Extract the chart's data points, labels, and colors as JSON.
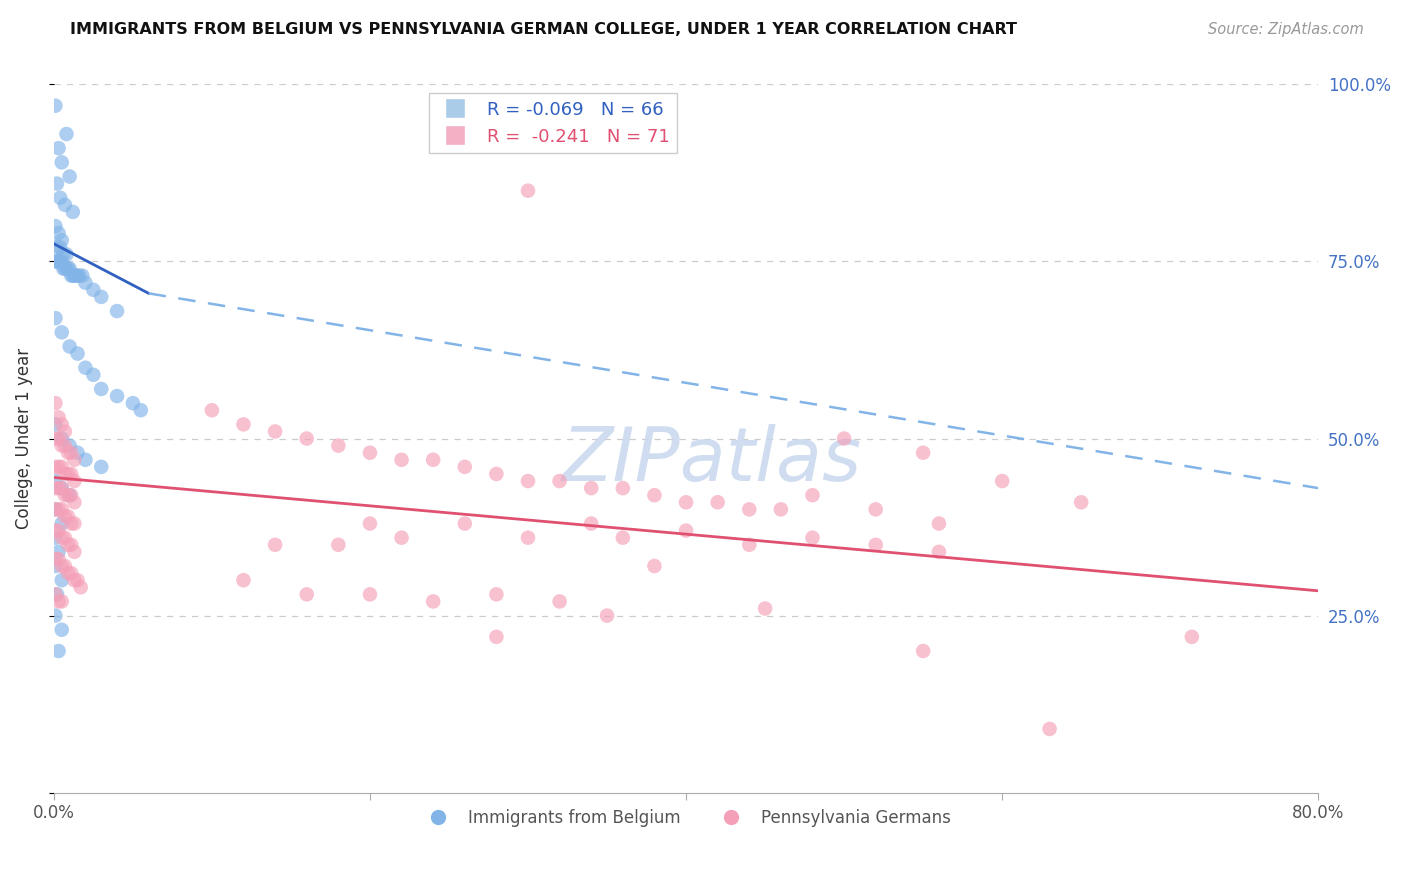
{
  "title": "IMMIGRANTS FROM BELGIUM VS PENNSYLVANIA GERMAN COLLEGE, UNDER 1 YEAR CORRELATION CHART",
  "source": "Source: ZipAtlas.com",
  "ylabel": "College, Under 1 year",
  "xlim": [
    0.0,
    0.8
  ],
  "ylim": [
    0.0,
    1.0
  ],
  "blue_scatter": [
    [
      0.001,
      0.97
    ],
    [
      0.008,
      0.93
    ],
    [
      0.003,
      0.91
    ],
    [
      0.005,
      0.89
    ],
    [
      0.01,
      0.87
    ],
    [
      0.002,
      0.86
    ],
    [
      0.004,
      0.84
    ],
    [
      0.007,
      0.83
    ],
    [
      0.012,
      0.82
    ],
    [
      0.001,
      0.8
    ],
    [
      0.003,
      0.79
    ],
    [
      0.005,
      0.78
    ],
    [
      0.002,
      0.77
    ],
    [
      0.004,
      0.77
    ],
    [
      0.006,
      0.76
    ],
    [
      0.008,
      0.76
    ],
    [
      0.001,
      0.75
    ],
    [
      0.002,
      0.75
    ],
    [
      0.003,
      0.75
    ],
    [
      0.004,
      0.75
    ],
    [
      0.005,
      0.75
    ],
    [
      0.006,
      0.74
    ],
    [
      0.007,
      0.74
    ],
    [
      0.008,
      0.74
    ],
    [
      0.009,
      0.74
    ],
    [
      0.01,
      0.74
    ],
    [
      0.011,
      0.73
    ],
    [
      0.012,
      0.73
    ],
    [
      0.013,
      0.73
    ],
    [
      0.014,
      0.73
    ],
    [
      0.015,
      0.73
    ],
    [
      0.016,
      0.73
    ],
    [
      0.018,
      0.73
    ],
    [
      0.02,
      0.72
    ],
    [
      0.025,
      0.71
    ],
    [
      0.03,
      0.7
    ],
    [
      0.04,
      0.68
    ],
    [
      0.001,
      0.67
    ],
    [
      0.005,
      0.65
    ],
    [
      0.01,
      0.63
    ],
    [
      0.015,
      0.62
    ],
    [
      0.02,
      0.6
    ],
    [
      0.025,
      0.59
    ],
    [
      0.03,
      0.57
    ],
    [
      0.04,
      0.56
    ],
    [
      0.05,
      0.55
    ],
    [
      0.055,
      0.54
    ],
    [
      0.001,
      0.52
    ],
    [
      0.005,
      0.5
    ],
    [
      0.01,
      0.49
    ],
    [
      0.015,
      0.48
    ],
    [
      0.02,
      0.47
    ],
    [
      0.03,
      0.46
    ],
    [
      0.001,
      0.44
    ],
    [
      0.005,
      0.43
    ],
    [
      0.01,
      0.42
    ],
    [
      0.001,
      0.4
    ],
    [
      0.005,
      0.38
    ],
    [
      0.001,
      0.36
    ],
    [
      0.003,
      0.34
    ],
    [
      0.001,
      0.32
    ],
    [
      0.005,
      0.3
    ],
    [
      0.002,
      0.28
    ],
    [
      0.001,
      0.25
    ],
    [
      0.005,
      0.23
    ],
    [
      0.003,
      0.2
    ]
  ],
  "pink_scatter": [
    [
      0.001,
      0.55
    ],
    [
      0.003,
      0.53
    ],
    [
      0.005,
      0.52
    ],
    [
      0.007,
      0.51
    ],
    [
      0.001,
      0.5
    ],
    [
      0.003,
      0.5
    ],
    [
      0.005,
      0.49
    ],
    [
      0.007,
      0.49
    ],
    [
      0.009,
      0.48
    ],
    [
      0.011,
      0.48
    ],
    [
      0.013,
      0.47
    ],
    [
      0.001,
      0.46
    ],
    [
      0.003,
      0.46
    ],
    [
      0.005,
      0.46
    ],
    [
      0.007,
      0.45
    ],
    [
      0.009,
      0.45
    ],
    [
      0.011,
      0.45
    ],
    [
      0.013,
      0.44
    ],
    [
      0.001,
      0.43
    ],
    [
      0.003,
      0.43
    ],
    [
      0.005,
      0.43
    ],
    [
      0.007,
      0.42
    ],
    [
      0.009,
      0.42
    ],
    [
      0.011,
      0.42
    ],
    [
      0.013,
      0.41
    ],
    [
      0.001,
      0.4
    ],
    [
      0.003,
      0.4
    ],
    [
      0.005,
      0.4
    ],
    [
      0.007,
      0.39
    ],
    [
      0.009,
      0.39
    ],
    [
      0.011,
      0.38
    ],
    [
      0.013,
      0.38
    ],
    [
      0.001,
      0.37
    ],
    [
      0.003,
      0.37
    ],
    [
      0.005,
      0.36
    ],
    [
      0.007,
      0.36
    ],
    [
      0.009,
      0.35
    ],
    [
      0.011,
      0.35
    ],
    [
      0.013,
      0.34
    ],
    [
      0.001,
      0.33
    ],
    [
      0.003,
      0.33
    ],
    [
      0.005,
      0.32
    ],
    [
      0.007,
      0.32
    ],
    [
      0.009,
      0.31
    ],
    [
      0.011,
      0.31
    ],
    [
      0.013,
      0.3
    ],
    [
      0.015,
      0.3
    ],
    [
      0.017,
      0.29
    ],
    [
      0.001,
      0.28
    ],
    [
      0.003,
      0.27
    ],
    [
      0.005,
      0.27
    ],
    [
      0.1,
      0.54
    ],
    [
      0.12,
      0.52
    ],
    [
      0.14,
      0.51
    ],
    [
      0.16,
      0.5
    ],
    [
      0.18,
      0.49
    ],
    [
      0.2,
      0.48
    ],
    [
      0.22,
      0.47
    ],
    [
      0.24,
      0.47
    ],
    [
      0.26,
      0.46
    ],
    [
      0.28,
      0.45
    ],
    [
      0.3,
      0.44
    ],
    [
      0.32,
      0.44
    ],
    [
      0.34,
      0.43
    ],
    [
      0.36,
      0.43
    ],
    [
      0.38,
      0.42
    ],
    [
      0.4,
      0.41
    ],
    [
      0.42,
      0.41
    ],
    [
      0.44,
      0.4
    ],
    [
      0.46,
      0.4
    ],
    [
      0.5,
      0.5
    ],
    [
      0.3,
      0.85
    ],
    [
      0.52,
      0.4
    ],
    [
      0.56,
      0.38
    ],
    [
      0.6,
      0.44
    ],
    [
      0.55,
      0.48
    ],
    [
      0.48,
      0.42
    ],
    [
      0.65,
      0.41
    ],
    [
      0.55,
      0.2
    ],
    [
      0.72,
      0.22
    ],
    [
      0.63,
      0.09
    ],
    [
      0.45,
      0.26
    ],
    [
      0.35,
      0.25
    ],
    [
      0.28,
      0.22
    ],
    [
      0.38,
      0.32
    ],
    [
      0.14,
      0.35
    ],
    [
      0.2,
      0.38
    ],
    [
      0.18,
      0.35
    ],
    [
      0.22,
      0.36
    ],
    [
      0.26,
      0.38
    ],
    [
      0.3,
      0.36
    ],
    [
      0.34,
      0.38
    ],
    [
      0.36,
      0.36
    ],
    [
      0.4,
      0.37
    ],
    [
      0.44,
      0.35
    ],
    [
      0.48,
      0.36
    ],
    [
      0.52,
      0.35
    ],
    [
      0.56,
      0.34
    ],
    [
      0.12,
      0.3
    ],
    [
      0.16,
      0.28
    ],
    [
      0.2,
      0.28
    ],
    [
      0.24,
      0.27
    ],
    [
      0.28,
      0.28
    ],
    [
      0.32,
      0.27
    ]
  ],
  "blue_line_x": [
    0.0,
    0.06
  ],
  "blue_line_y": [
    0.775,
    0.705
  ],
  "blue_dash_line_x": [
    0.06,
    0.8
  ],
  "blue_dash_line_y": [
    0.705,
    0.43
  ],
  "pink_line_x": [
    0.0,
    0.8
  ],
  "pink_line_y": [
    0.445,
    0.285
  ],
  "background_color": "#ffffff",
  "grid_color": "#cccccc",
  "scatter_blue_color": "#82b4e8",
  "scatter_pink_color": "#f4a0b8",
  "line_blue_color": "#3060c0",
  "line_pink_color": "#e05070",
  "line_blue_dash_color": "#82b4e8"
}
